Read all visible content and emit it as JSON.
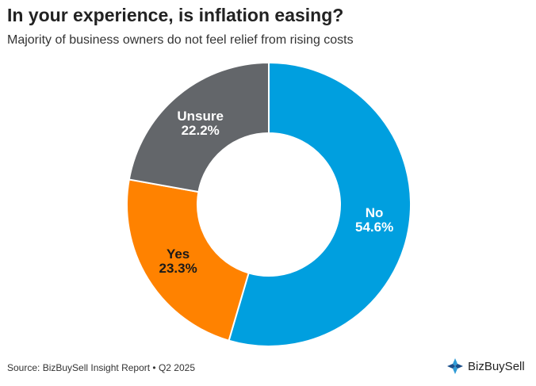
{
  "title": "In your experience, is inflation easing?",
  "subtitle": "Majority of business owners do not feel relief from rising costs",
  "source": "Source: BizBuySell Insight Report • Q2 2025",
  "brand": "BizBuySell",
  "chart_data": {
    "type": "pie",
    "style": "donut",
    "title": "In your experience, is inflation easing?",
    "categories": [
      "No",
      "Yes",
      "Unsure"
    ],
    "values": [
      54.6,
      23.3,
      22.2
    ],
    "labels": [
      "54.6%",
      "23.3%",
      "22.2%"
    ],
    "colors": [
      "#009FDF",
      "#FF8200",
      "#63666A"
    ],
    "label_colors": [
      "#ffffff",
      "#1a1a1a",
      "#ffffff"
    ],
    "start_angle_deg": 0,
    "direction": "clockwise"
  },
  "colors": {
    "logo_blue": "#2F9BD6",
    "logo_dark": "#1B4F8A"
  }
}
